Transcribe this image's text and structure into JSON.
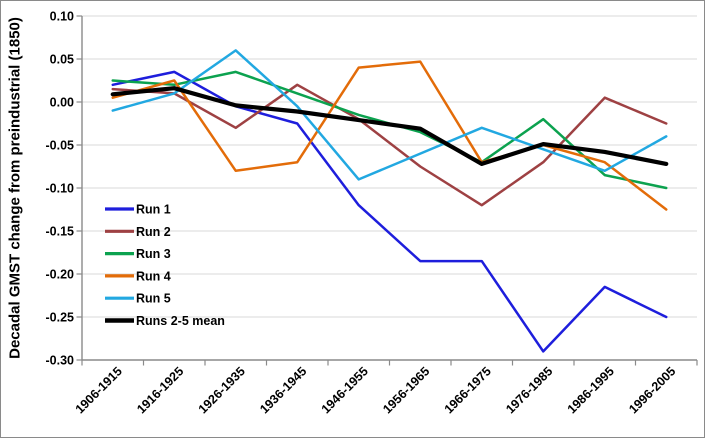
{
  "chart_data": {
    "type": "line",
    "title": "",
    "xlabel": "",
    "ylabel": "Decadal GMST change from preindustrial (1850)",
    "ylim": [
      -0.3,
      0.1
    ],
    "ytick_step": 0.05,
    "y_tick_labels": [
      "0.10",
      "0.05",
      "0.00",
      "-0.05",
      "-0.10",
      "-0.15",
      "-0.20",
      "-0.25",
      "-0.30"
    ],
    "grid": true,
    "legend_position": "inside-left",
    "categories": [
      "1906-1915",
      "1916-1925",
      "1926-1935",
      "1936-1945",
      "1946-1955",
      "1956-1965",
      "1966-1975",
      "1976-1985",
      "1986-1995",
      "1996-2005"
    ],
    "series": [
      {
        "name": "Run 1",
        "color": "#1E1EDC",
        "width": 2.5,
        "values": [
          0.02,
          0.035,
          -0.005,
          -0.025,
          -0.12,
          -0.185,
          -0.185,
          -0.29,
          -0.215,
          -0.25
        ]
      },
      {
        "name": "Run 2",
        "color": "#9E4143",
        "width": 2.5,
        "values": [
          0.015,
          0.01,
          -0.03,
          0.02,
          -0.02,
          -0.075,
          -0.12,
          -0.07,
          0.005,
          -0.025
        ]
      },
      {
        "name": "Run 3",
        "color": "#0CA24F",
        "width": 2.5,
        "values": [
          0.025,
          0.02,
          0.035,
          0.01,
          -0.015,
          -0.035,
          -0.07,
          -0.02,
          -0.085,
          -0.1
        ]
      },
      {
        "name": "Run 4",
        "color": "#E36C09",
        "width": 2.5,
        "values": [
          0.005,
          0.025,
          -0.08,
          -0.07,
          0.04,
          0.047,
          -0.07,
          -0.05,
          -0.07,
          -0.125
        ]
      },
      {
        "name": "Run 5",
        "color": "#22A8E1",
        "width": 2.5,
        "values": [
          -0.01,
          0.01,
          0.06,
          -0.005,
          -0.09,
          -0.06,
          -0.03,
          -0.055,
          -0.08,
          -0.04
        ]
      },
      {
        "name": "Runs 2-5 mean",
        "color": "#000000",
        "width": 4.2,
        "values": [
          0.009,
          0.016,
          -0.004,
          -0.011,
          -0.021,
          -0.031,
          -0.072,
          -0.049,
          -0.058,
          -0.072
        ]
      }
    ],
    "colors": {
      "gridline": "#D9D9D9",
      "axis": "#8A8A8A",
      "text": "#000000",
      "background": "#FFFFFF"
    }
  }
}
